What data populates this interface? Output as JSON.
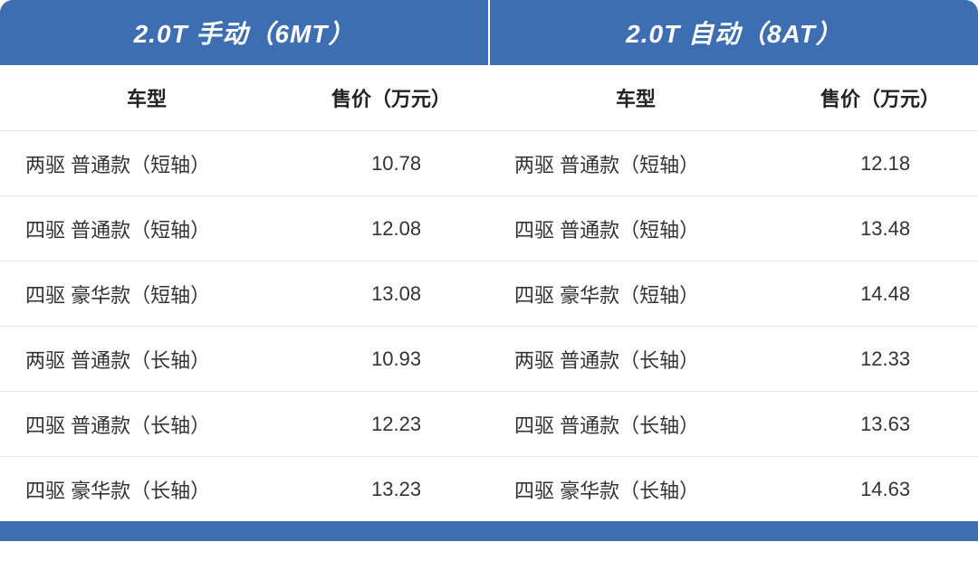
{
  "colors": {
    "header_bg": "#3d6eb1",
    "bottom_bar": "#3d6eb1",
    "row_border": "#e5e5e5",
    "text": "#333333",
    "header_text": "#ffffff"
  },
  "header": {
    "left": "2.0T 手动（6MT）",
    "right": "2.0T 自动（8AT）"
  },
  "subheader": {
    "model_label": "车型",
    "price_label": "售价（万元）"
  },
  "rows": [
    {
      "left_model": "两驱 普通款（短轴）",
      "left_price": "10.78",
      "right_model": "两驱 普通款（短轴）",
      "right_price": "12.18"
    },
    {
      "left_model": "四驱 普通款（短轴）",
      "left_price": "12.08",
      "right_model": "四驱 普通款（短轴）",
      "right_price": "13.48"
    },
    {
      "left_model": "四驱 豪华款（短轴）",
      "left_price": "13.08",
      "right_model": "四驱 豪华款（短轴）",
      "right_price": "14.48"
    },
    {
      "left_model": "两驱 普通款（长轴）",
      "left_price": "10.93",
      "right_model": "两驱 普通款（长轴）",
      "right_price": "12.33"
    },
    {
      "left_model": "四驱 普通款（长轴）",
      "left_price": "12.23",
      "right_model": "四驱 普通款（长轴）",
      "right_price": "13.63"
    },
    {
      "left_model": "四驱 豪华款（长轴）",
      "left_price": "13.23",
      "right_model": "四驱 豪华款（长轴）",
      "right_price": "14.63"
    }
  ]
}
